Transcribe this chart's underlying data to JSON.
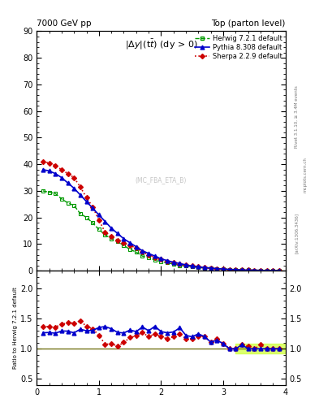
{
  "title_left": "7000 GeV pp",
  "title_right": "Top (parton level)",
  "plot_title": "$|\\Delta y|$(t$\\bar{t}$) (dy > 0)",
  "watermark": "(MC_FBA_ETA_B)",
  "right_label1": "Rivet 3.1.10, ≥ 3.4M events",
  "right_label2": "mcplots.cern.ch [arXiv:1306.3436]",
  "x": [
    0.1,
    0.2,
    0.3,
    0.4,
    0.5,
    0.6,
    0.7,
    0.8,
    0.9,
    1.0,
    1.1,
    1.2,
    1.3,
    1.4,
    1.5,
    1.6,
    1.7,
    1.8,
    1.9,
    2.0,
    2.1,
    2.2,
    2.3,
    2.4,
    2.5,
    2.6,
    2.7,
    2.8,
    2.9,
    3.0,
    3.1,
    3.2,
    3.3,
    3.4,
    3.5,
    3.6,
    3.7,
    3.8,
    3.9
  ],
  "herwig_y": [
    30.0,
    29.5,
    29.0,
    27.0,
    25.5,
    24.5,
    21.5,
    20.0,
    18.0,
    15.5,
    13.5,
    12.0,
    11.0,
    9.5,
    8.0,
    7.0,
    5.5,
    5.0,
    4.0,
    3.5,
    3.0,
    2.5,
    2.0,
    1.8,
    1.5,
    1.2,
    1.0,
    0.9,
    0.7,
    0.6,
    0.5,
    0.4,
    0.3,
    0.25,
    0.2,
    0.15,
    0.12,
    0.1,
    0.08
  ],
  "pythia_y": [
    38.0,
    37.5,
    36.5,
    35.0,
    33.0,
    31.0,
    28.5,
    26.0,
    23.5,
    21.0,
    18.5,
    16.0,
    14.0,
    12.0,
    10.5,
    9.0,
    7.5,
    6.5,
    5.5,
    4.5,
    3.8,
    3.2,
    2.7,
    2.2,
    1.8,
    1.5,
    1.2,
    1.0,
    0.8,
    0.65,
    0.5,
    0.4,
    0.32,
    0.25,
    0.2,
    0.15,
    0.12,
    0.1,
    0.08
  ],
  "sherpa_y": [
    41.0,
    40.5,
    39.5,
    38.0,
    36.5,
    35.0,
    31.5,
    27.5,
    24.0,
    19.0,
    14.5,
    13.0,
    11.5,
    10.5,
    9.5,
    8.5,
    7.0,
    6.0,
    5.0,
    4.2,
    3.5,
    3.0,
    2.5,
    2.1,
    1.75,
    1.45,
    1.2,
    1.0,
    0.82,
    0.65,
    0.5,
    0.4,
    0.32,
    0.26,
    0.2,
    0.16,
    0.12,
    0.1,
    0.08
  ],
  "herwig_color": "#009900",
  "pythia_color": "#0000cc",
  "sherpa_color": "#cc0000",
  "herwig_band_color": "#ccff33",
  "ylim_main": [
    0,
    90
  ],
  "ylim_ratio": [
    0.4,
    2.3
  ],
  "xlim": [
    0,
    4
  ],
  "bg_color": "#ffffff"
}
